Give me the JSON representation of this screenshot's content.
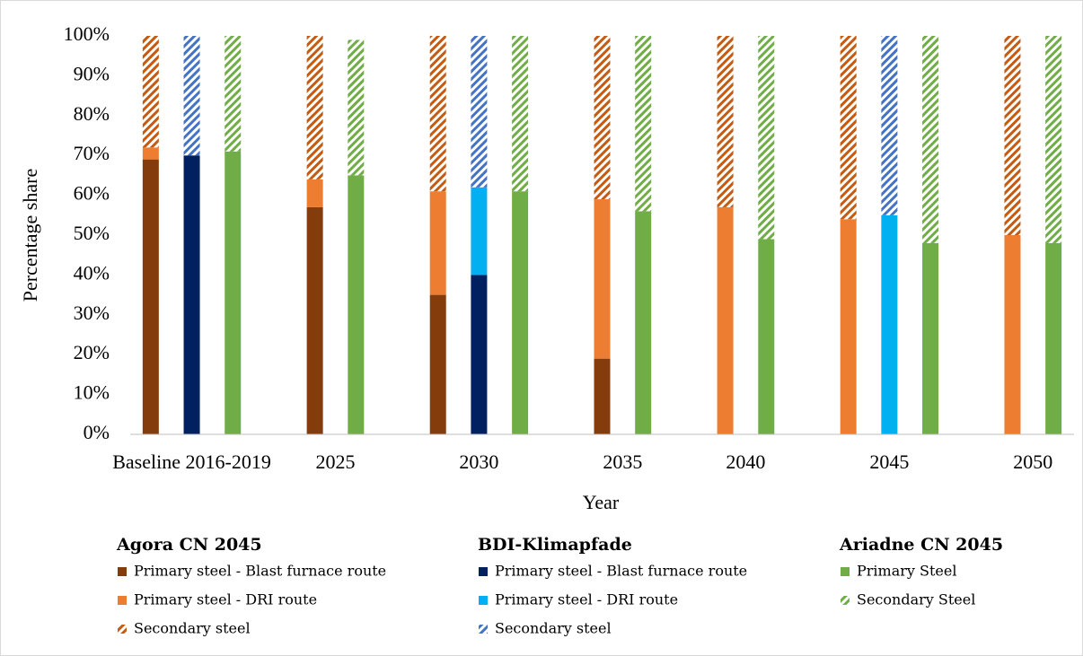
{
  "chart_data": {
    "type": "stacked_bar",
    "y_label": "Percentage share",
    "x_label": "Year",
    "categories": [
      "Baseline 2016-2019",
      "2025",
      "2030",
      "2035",
      "2040",
      "2045",
      "2050"
    ],
    "ylim": [
      0,
      100
    ],
    "yticks": [
      {
        "value": 0,
        "label": "0%"
      },
      {
        "value": 10,
        "label": "10%"
      },
      {
        "value": 20,
        "label": "20%"
      },
      {
        "value": 30,
        "label": "30%"
      },
      {
        "value": 40,
        "label": "40%"
      },
      {
        "value": 50,
        "label": "50%"
      },
      {
        "value": 60,
        "label": "60%"
      },
      {
        "value": 70,
        "label": "70%"
      },
      {
        "value": 80,
        "label": "80%"
      },
      {
        "value": 90,
        "label": "90%"
      },
      {
        "value": 100,
        "label": "100%"
      }
    ],
    "grid": false,
    "scenarios": [
      {
        "name": "Agora CN 2045",
        "series": [
          {
            "name": "Primary steel - Blast furnace route",
            "color": "#843c0c",
            "pattern": "solid",
            "values": [
              69,
              57,
              35,
              19,
              0,
              0,
              0
            ]
          },
          {
            "name": "Primary steel - DRI route",
            "color": "#ed7d31",
            "pattern": "solid",
            "values": [
              3,
              7,
              26,
              40,
              57,
              54,
              50
            ]
          },
          {
            "name": "Secondary steel",
            "color": "#c55a11",
            "pattern": "hatch",
            "values": [
              28,
              36,
              39,
              41,
              43,
              46,
              50
            ]
          }
        ]
      },
      {
        "name": "BDI-Klimapfade",
        "series": [
          {
            "name": "Primary steel - Blast furnace route",
            "color": "#002060",
            "pattern": "solid",
            "values": [
              70,
              null,
              40,
              null,
              null,
              0,
              null
            ]
          },
          {
            "name": "Primary steel - DRI route",
            "color": "#00b0f0",
            "pattern": "solid",
            "values": [
              0,
              null,
              22,
              null,
              null,
              55,
              null
            ]
          },
          {
            "name": "Secondary steel",
            "color": "#4472c4",
            "pattern": "hatch",
            "values": [
              30,
              null,
              38,
              null,
              null,
              45,
              null
            ]
          }
        ]
      },
      {
        "name": "Ariadne CN 2045",
        "series": [
          {
            "name": "Primary Steel",
            "color": "#70ad47",
            "pattern": "solid",
            "values": [
              71,
              65,
              61,
              56,
              49,
              48,
              48
            ]
          },
          {
            "name": "Secondary Steel",
            "color": "#70ad47",
            "pattern": "hatch",
            "values": [
              29,
              34,
              39,
              44,
              51,
              52,
              52
            ]
          }
        ]
      }
    ]
  }
}
